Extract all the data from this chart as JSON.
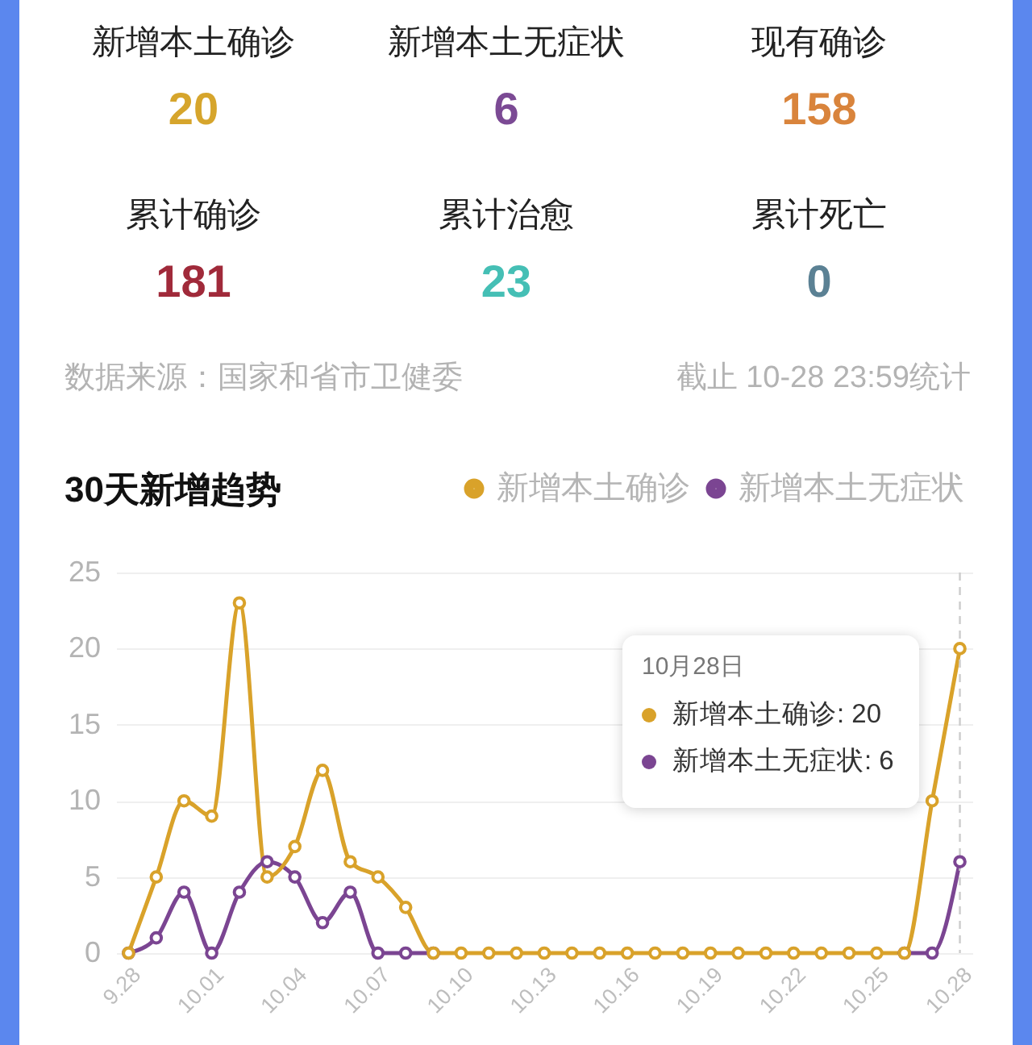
{
  "chart_data": [
    {
      "type": "other",
      "categories": [
        "新增本土确诊",
        "新增本土无症状",
        "现有确诊",
        "累计确诊",
        "累计治愈",
        "累计死亡"
      ],
      "values": [
        20,
        6,
        158,
        181,
        23,
        0
      ],
      "colors": [
        "#d6a52c",
        "#7b4a94",
        "#d9843c",
        "#a02a3a",
        "#45bfb5",
        "#5b8194"
      ],
      "data_labels": true,
      "annotations": [
        "数据来源：国家和省市卫健委",
        "截止 10-28 23:59统计"
      ]
    },
    {
      "type": "line",
      "title": "30天新增趋势",
      "categories": [
        "9.28",
        null,
        null,
        "10.01",
        null,
        null,
        "10.04",
        null,
        null,
        "10.07",
        null,
        null,
        "10.10",
        null,
        null,
        "10.13",
        null,
        null,
        "10.16",
        null,
        null,
        "10.19",
        null,
        null,
        "10.22",
        null,
        null,
        "10.25",
        null,
        null,
        "10.28"
      ],
      "series": [
        {
          "name": "新增本土确诊",
          "color": "#d9a22a",
          "values": [
            0,
            5,
            10,
            9,
            23,
            5,
            7,
            12,
            6,
            5,
            3,
            0,
            0,
            0,
            0,
            0,
            0,
            0,
            0,
            0,
            0,
            0,
            0,
            0,
            0,
            0,
            0,
            0,
            0,
            10,
            20
          ]
        },
        {
          "name": "新增本土无症状",
          "color": "#7b4592",
          "values": [
            0,
            1,
            4,
            0,
            4,
            6,
            5,
            2,
            4,
            0,
            0,
            0,
            null,
            null,
            null,
            null,
            null,
            null,
            null,
            null,
            null,
            null,
            null,
            null,
            null,
            null,
            null,
            null,
            0,
            0,
            6
          ]
        }
      ],
      "ylim": [
        0,
        25
      ],
      "yticks": [
        0,
        5,
        10,
        15,
        20,
        25
      ],
      "grid": "y",
      "legend": "top right",
      "marker": "circle",
      "ref_lines": [
        {
          "axis": "x",
          "value": "10.28",
          "line_style": "dashed",
          "color": "#cccccc"
        }
      ],
      "annotations": [
        "10月28日",
        "新增本土确诊: 20",
        "新增本土无症状: 6"
      ]
    }
  ]
}
